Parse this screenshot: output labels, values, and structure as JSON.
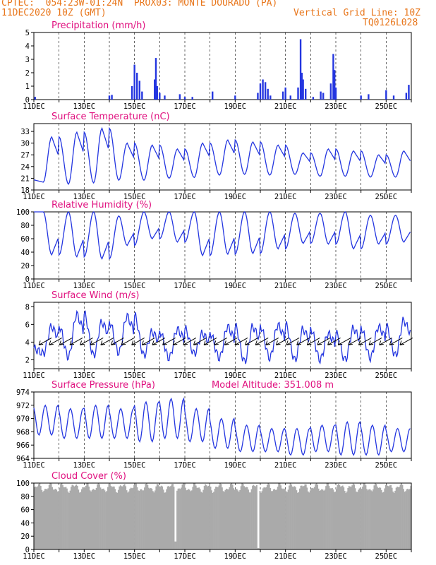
{
  "header": {
    "line1": "CPTEC:  054:23W-01:24N  PROX03: MONTE DOURADO (PA)",
    "date": "11DEC2020 10Z (GMT)",
    "grid_note": "Vertical Grid Line: 10Z",
    "code": "TQ0126L028"
  },
  "colors": {
    "line": "#2436e0",
    "cloud": "#aaaaaa",
    "title": "#e0107f",
    "header": "#e8761b"
  },
  "x_tick_labels": [
    "11DEC",
    "13DEC",
    "15DEC",
    "17DEC",
    "19DEC",
    "21DEC",
    "23DEC",
    "25DEC"
  ],
  "x_tick_days": [
    11,
    13,
    15,
    17,
    19,
    21,
    23,
    25
  ],
  "x_range_days": [
    11,
    26
  ],
  "chart_data": [
    {
      "id": "precip",
      "type": "bar",
      "title": "Precipitation (mm/h)",
      "ylim": [
        0,
        5
      ],
      "yticks": [
        0,
        1,
        2,
        3,
        4,
        5
      ],
      "x": [
        11.05,
        14.0,
        14.1,
        14.9,
        15.0,
        15.1,
        15.2,
        15.3,
        15.8,
        15.85,
        15.9,
        16.0,
        16.2,
        16.8,
        17.0,
        17.3,
        18.1,
        19.0,
        19.9,
        20.0,
        20.1,
        20.2,
        20.3,
        20.4,
        20.9,
        21.0,
        21.2,
        21.5,
        21.6,
        21.65,
        21.7,
        21.8,
        22.1,
        22.4,
        22.5,
        22.8,
        22.9,
        22.95,
        23.0,
        24.0,
        24.3,
        25.0,
        25.3,
        25.8,
        25.9
      ],
      "values": [
        0.2,
        0.3,
        0.35,
        1.0,
        2.6,
        2.0,
        1.4,
        0.6,
        1.5,
        3.1,
        1.0,
        0.5,
        0.3,
        0.4,
        0.2,
        0.2,
        0.6,
        0.3,
        0.5,
        1.2,
        1.5,
        1.3,
        0.8,
        0.3,
        0.6,
        0.9,
        0.3,
        0.9,
        4.5,
        2.0,
        1.5,
        0.8,
        0.2,
        0.6,
        0.5,
        1.2,
        3.4,
        2.2,
        0.9,
        0.3,
        0.4,
        0.7,
        0.3,
        0.5,
        1.1
      ]
    },
    {
      "id": "temp",
      "type": "line",
      "title": "Surface Temperature (nC)",
      "ylim": [
        18,
        35
      ],
      "yticks": [
        18,
        21,
        24,
        27,
        30,
        33
      ],
      "mins": [
        20.0,
        19.5,
        19.8,
        20.5,
        20.5,
        21.0,
        21.2,
        21.8,
        22.0,
        21.8,
        22.0,
        21.5,
        21.5,
        21.3,
        21.3
      ],
      "maxs": [
        31.6,
        32.8,
        33.8,
        30.0,
        29.5,
        28.5,
        30.0,
        30.8,
        30.3,
        29.5,
        27.5,
        28.5,
        28.0,
        27.0,
        28.0
      ]
    },
    {
      "id": "rh",
      "type": "line",
      "title": "Relative Humidity (%)",
      "ylim": [
        0,
        100
      ],
      "yticks": [
        0,
        20,
        40,
        60,
        80,
        100
      ],
      "mins": [
        36,
        33,
        30,
        50,
        60,
        55,
        35,
        37,
        38,
        45,
        53,
        52,
        45,
        52,
        55
      ],
      "maxs": [
        100,
        100,
        100,
        94,
        100,
        100,
        100,
        100,
        100,
        100,
        98,
        98,
        100,
        95,
        95
      ]
    },
    {
      "id": "wind",
      "type": "line",
      "title": "Surface Wind (m/s)",
      "ylim": [
        1,
        8.5
      ],
      "yticks": [
        2,
        4,
        6,
        8
      ],
      "mins": [
        2.7,
        2.3,
        2.5,
        2.8,
        2.5,
        2.2,
        2.7,
        2.2,
        1.8,
        2.2,
        2.0,
        2.0,
        2.0,
        2.2,
        2.5
      ],
      "maxs": [
        5.8,
        7.2,
        6.3,
        7.0,
        5.2,
        5.5,
        5.0,
        5.8,
        5.8,
        6.0,
        5.5,
        5.0,
        5.6,
        5.8,
        6.5
      ]
    },
    {
      "id": "press",
      "type": "line",
      "title": "Surface Pressure (hPa)",
      "note": "Model Altitude: 351.008 m",
      "ylim": [
        964,
        974
      ],
      "yticks": [
        964,
        966,
        968,
        970,
        972,
        974
      ],
      "hi": [
        972.0,
        971.5,
        972.0,
        971.5,
        972.5,
        973.0,
        971.5,
        970.0,
        969.0,
        968.5,
        968.5,
        969.0,
        969.5,
        969.0,
        968.5
      ],
      "lo": [
        967.5,
        967.0,
        967.0,
        967.0,
        966.5,
        967.0,
        966.5,
        965.5,
        965.0,
        965.0,
        964.5,
        965.0,
        964.5,
        964.5,
        965.0
      ]
    },
    {
      "id": "cloud",
      "type": "bar",
      "title": "Cloud Cover (%)",
      "ylim": [
        0,
        100
      ],
      "yticks": [
        0,
        20,
        40,
        60,
        80,
        100
      ],
      "base_value": 93,
      "drop_days": [
        16.6,
        19.9
      ],
      "drop_values": [
        12,
        2
      ]
    }
  ]
}
